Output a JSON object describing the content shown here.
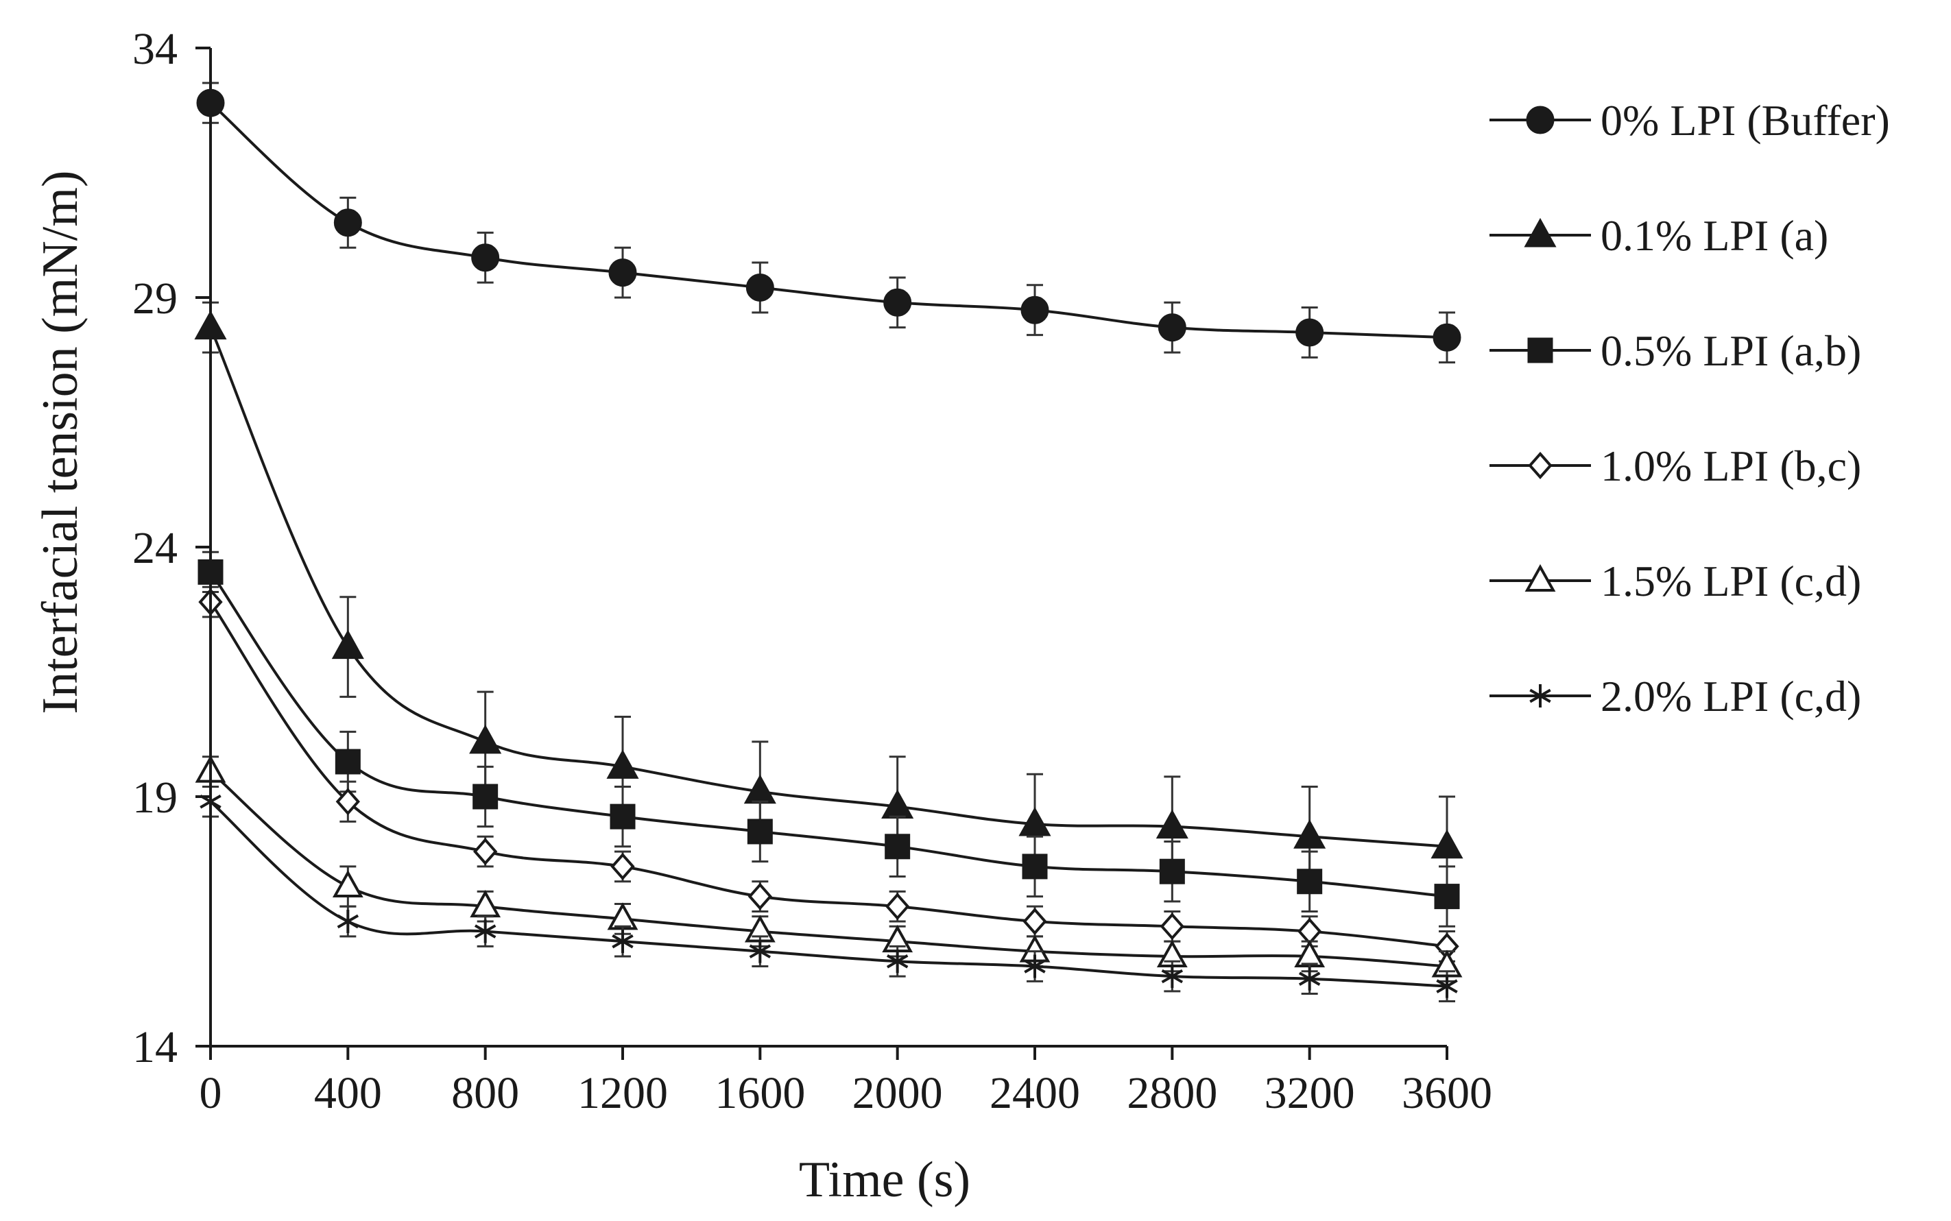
{
  "chart_data": {
    "type": "line",
    "title": "",
    "xlabel": "Time (s)",
    "ylabel": "Interfacial tension (mN/m)",
    "xlim": [
      0,
      3600
    ],
    "ylim": [
      14,
      34
    ],
    "xticks": [
      0,
      400,
      800,
      1200,
      1600,
      2000,
      2400,
      2800,
      3200,
      3600
    ],
    "yticks": [
      14,
      19,
      24,
      29,
      34
    ],
    "grid": false,
    "legend_position": "right",
    "x": [
      0,
      400,
      800,
      1200,
      1600,
      2000,
      2400,
      2800,
      3200,
      3600
    ],
    "series": [
      {
        "name": "0% LPI (Buffer)",
        "marker": "filled-circle",
        "values": [
          32.9,
          30.5,
          29.8,
          29.5,
          29.2,
          28.9,
          28.75,
          28.4,
          28.3,
          28.2
        ],
        "errors": [
          0.4,
          0.5,
          0.5,
          0.5,
          0.5,
          0.5,
          0.5,
          0.5,
          0.5,
          0.5
        ]
      },
      {
        "name": "0.1% LPI (a)",
        "marker": "filled-triangle",
        "values": [
          28.4,
          22.0,
          20.1,
          19.6,
          19.1,
          18.8,
          18.45,
          18.4,
          18.2,
          18.0
        ],
        "errors": [
          0.5,
          1.0,
          1.0,
          1.0,
          1.0,
          1.0,
          1.0,
          1.0,
          1.0,
          1.0
        ]
      },
      {
        "name": "0.5% LPI (a,b)",
        "marker": "filled-square",
        "values": [
          23.5,
          19.7,
          19.0,
          18.6,
          18.3,
          18.0,
          17.6,
          17.5,
          17.3,
          17.0
        ],
        "errors": [
          0.4,
          0.6,
          0.6,
          0.6,
          0.6,
          0.6,
          0.6,
          0.6,
          0.6,
          0.6
        ]
      },
      {
        "name": "1.0% LPI (b,c)",
        "marker": "open-diamond",
        "values": [
          22.9,
          18.9,
          17.9,
          17.6,
          17.0,
          16.8,
          16.5,
          16.4,
          16.3,
          16.0
        ],
        "errors": [
          0.3,
          0.4,
          0.3,
          0.3,
          0.3,
          0.3,
          0.3,
          0.3,
          0.3,
          0.3
        ]
      },
      {
        "name": "1.5% LPI (c,d)",
        "marker": "open-triangle",
        "values": [
          19.5,
          17.2,
          16.8,
          16.55,
          16.3,
          16.1,
          15.9,
          15.8,
          15.8,
          15.6
        ],
        "errors": [
          0.3,
          0.4,
          0.3,
          0.3,
          0.3,
          0.3,
          0.3,
          0.3,
          0.3,
          0.3
        ]
      },
      {
        "name": "2.0% LPI (c,d)",
        "marker": "asterisk",
        "values": [
          18.9,
          16.5,
          16.3,
          16.1,
          15.9,
          15.7,
          15.6,
          15.4,
          15.35,
          15.2
        ],
        "errors": [
          0.3,
          0.3,
          0.3,
          0.3,
          0.3,
          0.3,
          0.3,
          0.3,
          0.3,
          0.3
        ]
      }
    ]
  }
}
